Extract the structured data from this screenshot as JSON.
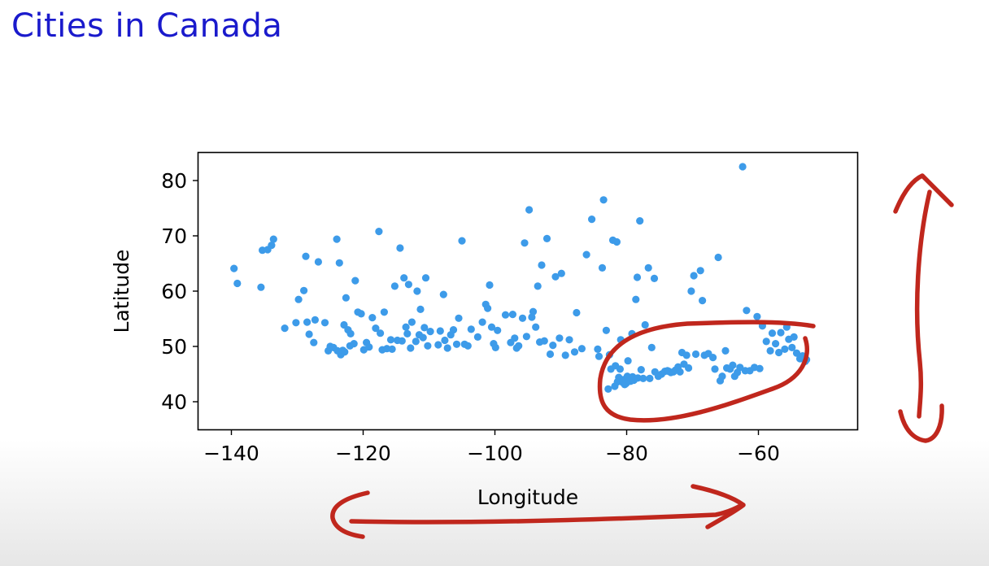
{
  "slide": {
    "title": "Cities in Canada"
  },
  "chart_data": {
    "type": "scatter",
    "title": "",
    "xlabel": "Longitude",
    "ylabel": "Latitude",
    "xlim": [
      -145,
      -45
    ],
    "ylim": [
      35,
      85
    ],
    "xticks": [
      -140,
      -120,
      -100,
      -80,
      -60
    ],
    "yticks": [
      40,
      50,
      60,
      70,
      80
    ],
    "xtick_labels": [
      "−140",
      "−120",
      "−100",
      "−80",
      "−60"
    ],
    "ytick_labels": [
      "40",
      "50",
      "60",
      "70",
      "80"
    ],
    "grid": false,
    "legend": "none",
    "point_color": "#3d9be9",
    "series": [
      {
        "points": [
          [
            -139.6,
            64.1
          ],
          [
            -139.1,
            61.4
          ],
          [
            -135.5,
            60.7
          ],
          [
            -135.3,
            67.4
          ],
          [
            -134.5,
            67.5
          ],
          [
            -133.9,
            68.3
          ],
          [
            -133.6,
            69.4
          ],
          [
            -131.9,
            53.3
          ],
          [
            -130.2,
            54.3
          ],
          [
            -129.8,
            58.5
          ],
          [
            -129.0,
            60.1
          ],
          [
            -128.7,
            66.3
          ],
          [
            -128.5,
            54.4
          ],
          [
            -128.2,
            52.2
          ],
          [
            -127.5,
            50.7
          ],
          [
            -127.3,
            54.8
          ],
          [
            -126.8,
            65.3
          ],
          [
            -125.8,
            54.3
          ],
          [
            -125.3,
            49.2
          ],
          [
            -125.0,
            50.0
          ],
          [
            -124.5,
            49.8
          ],
          [
            -124.0,
            69.4
          ],
          [
            -123.9,
            49.2
          ],
          [
            -123.6,
            65.1
          ],
          [
            -123.4,
            48.5
          ],
          [
            -123.1,
            49.3
          ],
          [
            -122.9,
            53.9
          ],
          [
            -122.8,
            49.0
          ],
          [
            -122.6,
            58.8
          ],
          [
            -122.3,
            53.0
          ],
          [
            -122.0,
            50.1
          ],
          [
            -121.9,
            52.3
          ],
          [
            -121.4,
            50.5
          ],
          [
            -121.2,
            61.9
          ],
          [
            -120.8,
            56.2
          ],
          [
            -120.3,
            55.9
          ],
          [
            -119.9,
            49.4
          ],
          [
            -119.5,
            50.7
          ],
          [
            -119.1,
            49.9
          ],
          [
            -118.6,
            55.2
          ],
          [
            -118.1,
            53.3
          ],
          [
            -117.6,
            70.8
          ],
          [
            -117.4,
            52.4
          ],
          [
            -117.1,
            49.4
          ],
          [
            -116.8,
            56.2
          ],
          [
            -116.4,
            49.6
          ],
          [
            -115.8,
            51.2
          ],
          [
            -115.6,
            49.5
          ],
          [
            -115.2,
            60.9
          ],
          [
            -114.8,
            51.1
          ],
          [
            -114.4,
            67.8
          ],
          [
            -114.1,
            51.0
          ],
          [
            -113.8,
            62.4
          ],
          [
            -113.5,
            53.5
          ],
          [
            -113.3,
            52.3
          ],
          [
            -113.1,
            61.2
          ],
          [
            -112.8,
            49.7
          ],
          [
            -112.6,
            54.4
          ],
          [
            -112.0,
            50.9
          ],
          [
            -111.8,
            60.0
          ],
          [
            -111.5,
            52.1
          ],
          [
            -111.3,
            56.7
          ],
          [
            -110.9,
            51.6
          ],
          [
            -110.7,
            53.4
          ],
          [
            -110.5,
            62.4
          ],
          [
            -110.2,
            50.1
          ],
          [
            -109.8,
            52.7
          ],
          [
            -108.6,
            50.3
          ],
          [
            -108.3,
            52.8
          ],
          [
            -107.8,
            59.4
          ],
          [
            -107.6,
            51.1
          ],
          [
            -107.2,
            49.7
          ],
          [
            -106.7,
            52.1
          ],
          [
            -106.3,
            53.0
          ],
          [
            -105.8,
            50.4
          ],
          [
            -105.5,
            55.1
          ],
          [
            -105.0,
            69.1
          ],
          [
            -104.6,
            50.4
          ],
          [
            -104.1,
            50.1
          ],
          [
            -103.6,
            53.1
          ],
          [
            -102.6,
            51.7
          ],
          [
            -101.9,
            54.4
          ],
          [
            -101.4,
            57.6
          ],
          [
            -101.1,
            56.9
          ],
          [
            -100.8,
            61.1
          ],
          [
            -100.5,
            53.5
          ],
          [
            -100.2,
            50.5
          ],
          [
            -99.9,
            49.8
          ],
          [
            -99.6,
            52.9
          ],
          [
            -98.4,
            55.7
          ],
          [
            -97.6,
            50.7
          ],
          [
            -97.3,
            55.8
          ],
          [
            -97.0,
            51.5
          ],
          [
            -96.7,
            49.7
          ],
          [
            -96.4,
            50.1
          ],
          [
            -95.8,
            55.1
          ],
          [
            -95.5,
            68.7
          ],
          [
            -95.2,
            51.8
          ],
          [
            -94.8,
            74.7
          ],
          [
            -94.4,
            55.3
          ],
          [
            -94.2,
            56.3
          ],
          [
            -93.8,
            53.5
          ],
          [
            -93.5,
            60.9
          ],
          [
            -93.2,
            50.8
          ],
          [
            -92.9,
            64.7
          ],
          [
            -92.5,
            51.0
          ],
          [
            -92.1,
            69.5
          ],
          [
            -91.6,
            48.6
          ],
          [
            -91.2,
            50.2
          ],
          [
            -90.8,
            62.6
          ],
          [
            -90.2,
            51.5
          ],
          [
            -89.9,
            63.2
          ],
          [
            -89.3,
            48.4
          ],
          [
            -88.7,
            51.2
          ],
          [
            -87.9,
            49.0
          ],
          [
            -87.6,
            56.1
          ],
          [
            -86.8,
            49.6
          ],
          [
            -86.1,
            66.6
          ],
          [
            -85.3,
            73.0
          ],
          [
            -84.4,
            49.5
          ],
          [
            -84.2,
            48.2
          ],
          [
            -83.7,
            64.2
          ],
          [
            -83.5,
            76.5
          ],
          [
            -83.1,
            52.9
          ],
          [
            -82.8,
            42.3
          ],
          [
            -82.6,
            48.5
          ],
          [
            -82.4,
            45.9
          ],
          [
            -82.1,
            69.2
          ],
          [
            -81.8,
            42.8
          ],
          [
            -81.7,
            46.5
          ],
          [
            -81.5,
            68.9
          ],
          [
            -81.4,
            43.6
          ],
          [
            -81.2,
            44.4
          ],
          [
            -81.0,
            45.9
          ],
          [
            -80.9,
            51.2
          ],
          [
            -80.6,
            43.5
          ],
          [
            -80.5,
            44.0
          ],
          [
            -80.3,
            43.1
          ],
          [
            -80.1,
            43.3
          ],
          [
            -79.9,
            44.6
          ],
          [
            -79.8,
            47.4
          ],
          [
            -79.6,
            43.7
          ],
          [
            -79.4,
            43.7
          ],
          [
            -79.2,
            52.3
          ],
          [
            -79.1,
            44.5
          ],
          [
            -78.9,
            43.9
          ],
          [
            -78.6,
            58.5
          ],
          [
            -78.4,
            62.5
          ],
          [
            -78.3,
            44.3
          ],
          [
            -78.0,
            72.7
          ],
          [
            -77.8,
            45.8
          ],
          [
            -77.5,
            44.2
          ],
          [
            -77.2,
            53.9
          ],
          [
            -76.7,
            64.2
          ],
          [
            -76.5,
            44.2
          ],
          [
            -76.2,
            49.8
          ],
          [
            -75.8,
            62.3
          ],
          [
            -75.7,
            45.4
          ],
          [
            -75.2,
            44.6
          ],
          [
            -74.7,
            45.0
          ],
          [
            -74.2,
            45.5
          ],
          [
            -73.8,
            45.6
          ],
          [
            -73.6,
            45.5
          ],
          [
            -73.3,
            45.3
          ],
          [
            -72.9,
            45.4
          ],
          [
            -72.6,
            45.7
          ],
          [
            -72.2,
            46.3
          ],
          [
            -71.9,
            45.4
          ],
          [
            -71.6,
            48.9
          ],
          [
            -71.3,
            46.8
          ],
          [
            -70.9,
            48.4
          ],
          [
            -70.6,
            46.1
          ],
          [
            -70.2,
            60.0
          ],
          [
            -69.8,
            62.8
          ],
          [
            -69.5,
            48.6
          ],
          [
            -68.8,
            63.7
          ],
          [
            -68.5,
            58.3
          ],
          [
            -68.2,
            48.4
          ],
          [
            -67.6,
            48.7
          ],
          [
            -66.9,
            48.0
          ],
          [
            -66.6,
            45.9
          ],
          [
            -66.1,
            66.1
          ],
          [
            -65.8,
            43.8
          ],
          [
            -65.5,
            44.6
          ],
          [
            -65.0,
            49.2
          ],
          [
            -64.8,
            46.1
          ],
          [
            -64.3,
            45.9
          ],
          [
            -63.9,
            46.6
          ],
          [
            -63.6,
            44.6
          ],
          [
            -63.2,
            45.3
          ],
          [
            -62.8,
            46.2
          ],
          [
            -62.4,
            82.5
          ],
          [
            -62.0,
            45.6
          ],
          [
            -61.8,
            56.5
          ],
          [
            -61.3,
            45.6
          ],
          [
            -60.6,
            46.2
          ],
          [
            -60.2,
            55.4
          ],
          [
            -59.8,
            46.0
          ],
          [
            -59.4,
            53.7
          ],
          [
            -58.8,
            50.9
          ],
          [
            -58.2,
            49.2
          ],
          [
            -57.9,
            52.4
          ],
          [
            -57.4,
            50.5
          ],
          [
            -56.9,
            48.9
          ],
          [
            -56.6,
            52.5
          ],
          [
            -56.0,
            49.5
          ],
          [
            -55.7,
            53.5
          ],
          [
            -55.4,
            51.3
          ],
          [
            -54.9,
            49.8
          ],
          [
            -54.6,
            51.7
          ],
          [
            -54.2,
            48.8
          ],
          [
            -53.7,
            47.8
          ],
          [
            -53.3,
            48.3
          ],
          [
            -52.9,
            47.3
          ],
          [
            -52.7,
            47.6
          ]
        ]
      }
    ]
  }
}
